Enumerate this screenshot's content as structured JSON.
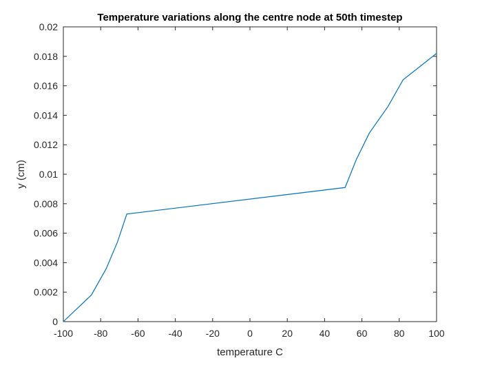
{
  "chart_data": {
    "type": "line",
    "title": "Temperature variations along the centre node at 50th timestep",
    "xlabel": "temperature C",
    "ylabel": "y (cm)",
    "xlim": [
      -100,
      100
    ],
    "ylim": [
      0,
      0.02
    ],
    "xticks": [
      -100,
      -80,
      -60,
      -40,
      -20,
      0,
      20,
      40,
      60,
      80,
      100
    ],
    "xtick_labels": [
      "-100",
      "-80",
      "-60",
      "-40",
      "-20",
      "0",
      "20",
      "40",
      "60",
      "80",
      "100"
    ],
    "yticks": [
      0,
      0.002,
      0.004,
      0.006,
      0.008,
      0.01,
      0.012,
      0.014,
      0.016,
      0.018,
      0.02
    ],
    "ytick_labels": [
      "0",
      "0.002",
      "0.004",
      "0.006",
      "0.008",
      "0.01",
      "0.012",
      "0.014",
      "0.016",
      "0.018",
      "0.02"
    ],
    "grid": false,
    "line_color": "#0072BD",
    "series": [
      {
        "x": [
          -100,
          -85,
          -77,
          -71,
          -66,
          51,
          57,
          64,
          74,
          82,
          100
        ],
        "y": [
          0,
          0.0018,
          0.0036,
          0.0054,
          0.0073,
          0.0091,
          0.011,
          0.0128,
          0.0146,
          0.0164,
          0.0182
        ]
      }
    ]
  }
}
